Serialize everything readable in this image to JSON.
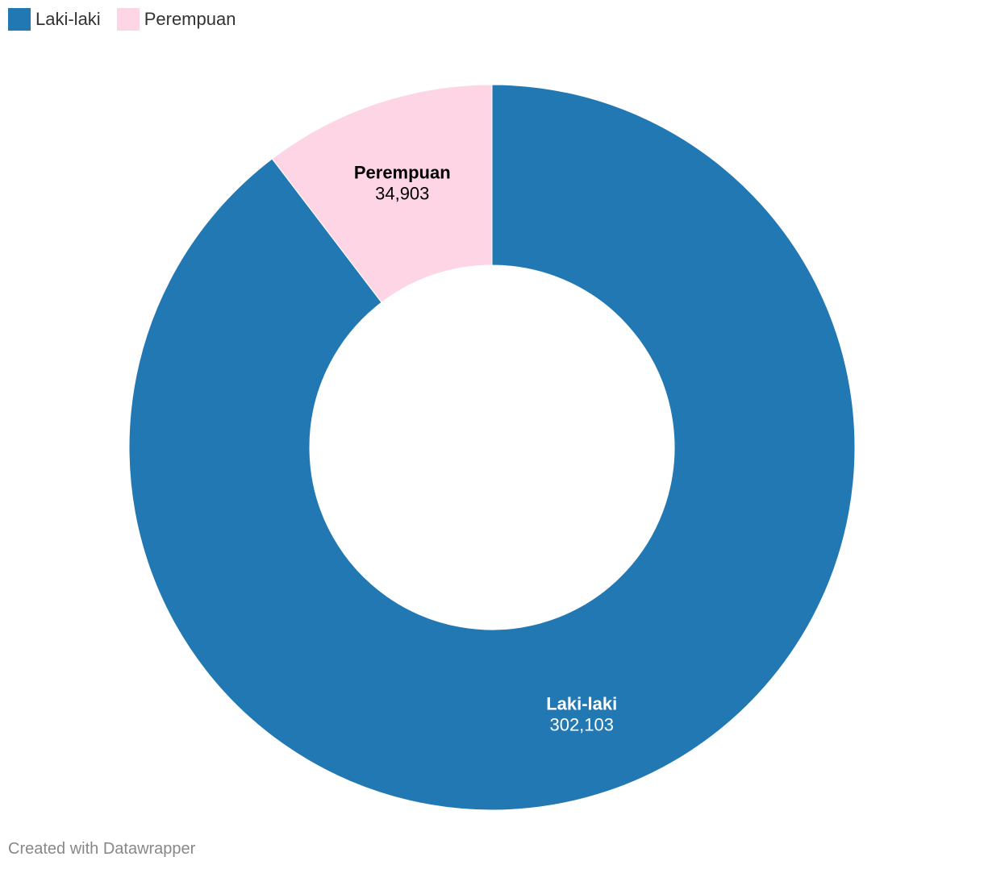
{
  "chart_data": {
    "type": "pie",
    "donut": true,
    "categories": [
      "Laki-laki",
      "Perempuan"
    ],
    "values": [
      302103,
      34903
    ],
    "value_labels": [
      "302,103",
      "34,903"
    ],
    "colors": [
      "#2178b3",
      "#fdd5e5"
    ],
    "label_colors": [
      "#ffffff",
      "#000000"
    ],
    "legend_position": "top-left",
    "title": ""
  },
  "legend": {
    "items": [
      {
        "label": "Laki-laki",
        "color": "#2178b3"
      },
      {
        "label": "Perempuan",
        "color": "#fdd5e5"
      }
    ]
  },
  "footer": {
    "credit": "Created with Datawrapper"
  }
}
